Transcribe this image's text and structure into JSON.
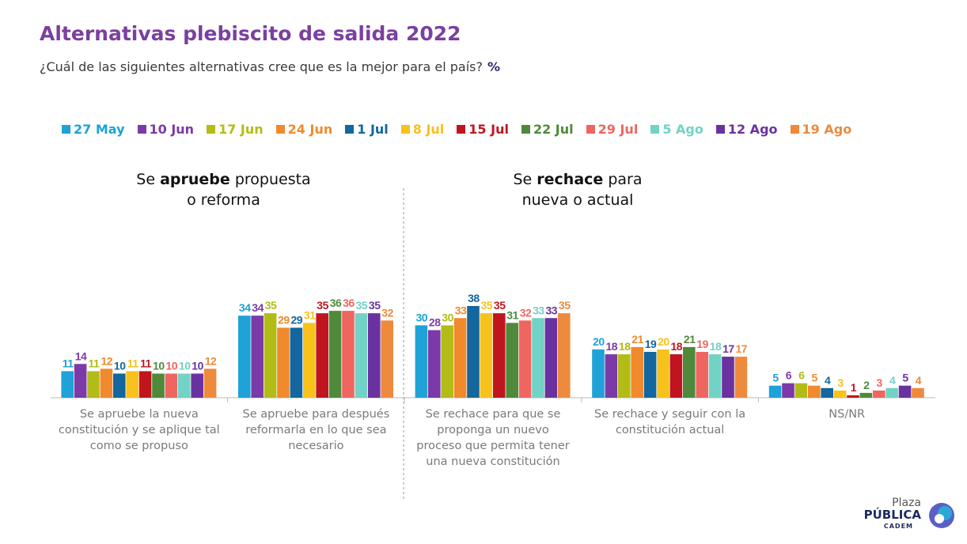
{
  "title": "Alternativas plebiscito de salida 2022",
  "subtitle": "¿Cuál de las siguientes alternativas cree que es la mejor para el país?",
  "unit": "%",
  "group_headings": [
    {
      "pre": "Se ",
      "bold": "apruebe",
      "post": " propuesta",
      "line2": "o reforma"
    },
    {
      "pre": "Se ",
      "bold": "rechace",
      "post": " para",
      "line2": "nueva o actual"
    }
  ],
  "logo": {
    "line1": "Plaza",
    "line2": "PÚBLICA",
    "line3": "CADEM"
  },
  "chart_data": {
    "type": "bar",
    "categories": [
      "Se apruebe la nueva constitución y se aplique tal como se propuso",
      "Se apruebe para después reformarla en lo que sea necesario",
      "Se rechace para que se proponga un nuevo proceso que permita tener una nueva constitución",
      "Se rechace y seguir con la constitución actual",
      "NS/NR"
    ],
    "category_lines": [
      [
        "Se apruebe la nueva",
        "constitución y se aplique tal",
        "como se propuso"
      ],
      [
        "Se apruebe para después",
        "reformarla en lo que sea",
        "necesario"
      ],
      [
        "Se rechace para que se",
        "proponga un nuevo",
        "proceso que permita tener",
        "una nueva constitución"
      ],
      [
        "Se rechace y seguir con la",
        "constitución actual"
      ],
      [
        "NS/NR"
      ]
    ],
    "series": [
      {
        "name": "27 May",
        "color": "#1ea2d8",
        "values": [
          11,
          34,
          30,
          20,
          5
        ]
      },
      {
        "name": "10 Jun",
        "color": "#7b3aa8",
        "values": [
          14,
          34,
          28,
          18,
          6
        ]
      },
      {
        "name": "17 Jun",
        "color": "#b3bc16",
        "values": [
          11,
          35,
          30,
          18,
          6
        ]
      },
      {
        "name": "24 Jun",
        "color": "#f08a2c",
        "values": [
          12,
          29,
          33,
          21,
          5
        ]
      },
      {
        "name": "1 Jul",
        "color": "#13669e",
        "values": [
          10,
          29,
          38,
          19,
          4
        ]
      },
      {
        "name": "8 Jul",
        "color": "#f7c21b",
        "values": [
          11,
          31,
          35,
          20,
          3
        ]
      },
      {
        "name": "15 Jul",
        "color": "#c0151e",
        "values": [
          11,
          35,
          35,
          18,
          1
        ]
      },
      {
        "name": "22 Jul",
        "color": "#4f8a3a",
        "values": [
          10,
          36,
          31,
          21,
          2
        ]
      },
      {
        "name": "29 Jul",
        "color": "#ef6660",
        "values": [
          10,
          36,
          32,
          19,
          3
        ]
      },
      {
        "name": "5 Ago",
        "color": "#72d2c5",
        "values": [
          10,
          35,
          33,
          18,
          4
        ]
      },
      {
        "name": "12 Ago",
        "color": "#6a32a0",
        "values": [
          10,
          35,
          33,
          17,
          5
        ]
      },
      {
        "name": "19 Ago",
        "color": "#ee8a3c",
        "values": [
          12,
          32,
          35,
          17,
          4
        ]
      }
    ],
    "ylim": [
      0,
      40
    ],
    "grid": false,
    "legend": "top"
  }
}
